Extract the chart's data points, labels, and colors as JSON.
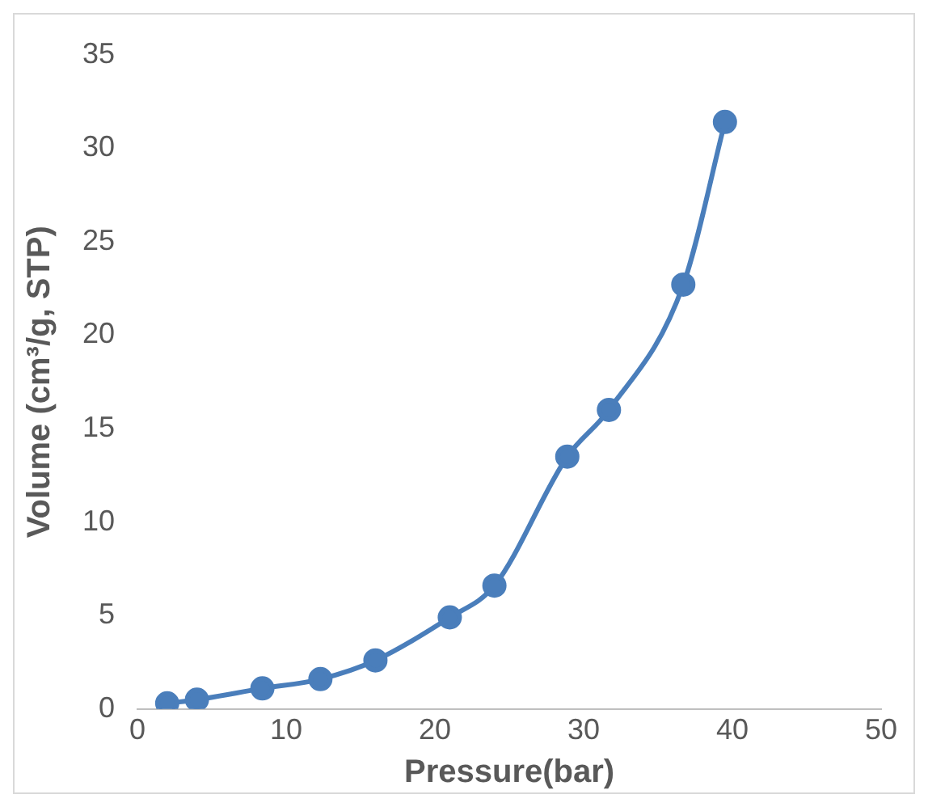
{
  "chart_data": {
    "type": "line",
    "xlabel": "Pressure(bar)",
    "ylabel": "Volume (cm³/g, STP)",
    "x": [
      2.0,
      4.0,
      8.4,
      12.3,
      16.0,
      21.0,
      24.0,
      28.9,
      31.7,
      36.7,
      39.5
    ],
    "series": [
      {
        "color": "#4a7ebb",
        "values": [
          0.3,
          0.5,
          1.1,
          1.6,
          2.6,
          4.9,
          6.6,
          13.5,
          16.0,
          22.7,
          31.4
        ]
      }
    ],
    "xlim": [
      0,
      50
    ],
    "xticks": [
      0,
      10,
      20,
      30,
      40,
      50
    ],
    "ylim": [
      0,
      35
    ],
    "yticks": [
      0,
      5,
      10,
      15,
      20,
      25,
      30,
      35
    ],
    "grid": false,
    "legend": false,
    "marker": "circle",
    "line_style": "solid"
  }
}
